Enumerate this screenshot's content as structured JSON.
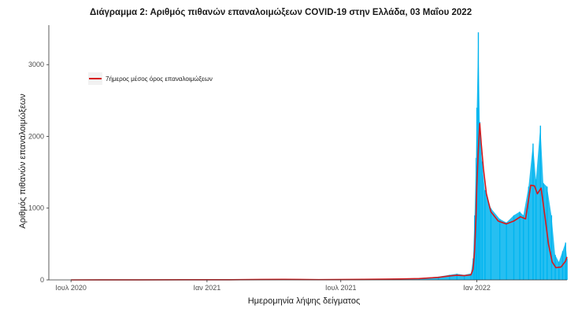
{
  "chart_data": {
    "type": "bar",
    "title": "Διάγραμμα 2: Αριθμός πιθανών επαναλοιμώξεων COVID-19 στην Ελλάδα, 03 Μαΐου 2022",
    "xlabel": "Ημερομηνία λήψης δείγματος",
    "ylabel": "Αριθμός πιθανών επαναλοιμώξεων",
    "x_range": [
      "2020-06-01",
      "2022-05-03"
    ],
    "ylim": [
      0,
      3550
    ],
    "x_ticks": [
      {
        "date": "2020-07-01",
        "label": "Ιουλ 2020"
      },
      {
        "date": "2021-01-01",
        "label": "Ιαν 2021"
      },
      {
        "date": "2021-07-01",
        "label": "Ιουλ 2021"
      },
      {
        "date": "2022-01-01",
        "label": "Ιαν 2022"
      }
    ],
    "y_ticks": [
      0,
      1000,
      2000,
      3000
    ],
    "grid": false,
    "legend": {
      "position": "top-left",
      "entries": [
        {
          "label": "7ήμερος μέσος όρος επαναλοιμώξεων",
          "color": "#d7191c"
        }
      ]
    },
    "colors": {
      "bars": "#00b4ef",
      "line": "#d7191c",
      "axis": "#333333"
    },
    "daily_series": {
      "name": "daily",
      "points": [
        [
          "2020-07-01",
          0
        ],
        [
          "2020-10-01",
          1
        ],
        [
          "2020-12-01",
          3
        ],
        [
          "2021-02-01",
          2
        ],
        [
          "2021-03-15",
          8
        ],
        [
          "2021-04-15",
          10
        ],
        [
          "2021-06-01",
          4
        ],
        [
          "2021-08-01",
          12
        ],
        [
          "2021-09-10",
          18
        ],
        [
          "2021-10-15",
          25
        ],
        [
          "2021-11-10",
          45
        ],
        [
          "2021-11-25",
          70
        ],
        [
          "2021-12-05",
          85
        ],
        [
          "2021-12-15",
          70
        ],
        [
          "2021-12-24",
          90
        ],
        [
          "2021-12-27",
          300
        ],
        [
          "2021-12-29",
          900
        ],
        [
          "2021-12-31",
          1700
        ],
        [
          "2022-01-01",
          2400
        ],
        [
          "2022-01-03",
          3450
        ],
        [
          "2022-01-05",
          2200
        ],
        [
          "2022-01-08",
          1650
        ],
        [
          "2022-01-12",
          1250
        ],
        [
          "2022-01-20",
          1000
        ],
        [
          "2022-02-01",
          850
        ],
        [
          "2022-02-10",
          800
        ],
        [
          "2022-02-20",
          900
        ],
        [
          "2022-02-28",
          950
        ],
        [
          "2022-03-05",
          900
        ],
        [
          "2022-03-12",
          1300
        ],
        [
          "2022-03-18",
          1900
        ],
        [
          "2022-03-22",
          1400
        ],
        [
          "2022-03-28",
          2150
        ],
        [
          "2022-04-01",
          1350
        ],
        [
          "2022-04-06",
          1300
        ],
        [
          "2022-04-12",
          900
        ],
        [
          "2022-04-17",
          350
        ],
        [
          "2022-04-22",
          250
        ],
        [
          "2022-04-27",
          400
        ],
        [
          "2022-05-01",
          520
        ],
        [
          "2022-05-03",
          300
        ]
      ]
    },
    "moving_average_series": {
      "name": "7ήμερος μέσος όρος επαναλοιμώξεων",
      "points": [
        [
          "2020-07-01",
          0
        ],
        [
          "2020-10-01",
          1
        ],
        [
          "2020-12-01",
          2
        ],
        [
          "2021-02-01",
          2
        ],
        [
          "2021-03-15",
          6
        ],
        [
          "2021-04-15",
          8
        ],
        [
          "2021-06-01",
          4
        ],
        [
          "2021-08-01",
          8
        ],
        [
          "2021-09-10",
          12
        ],
        [
          "2021-10-15",
          18
        ],
        [
          "2021-11-10",
          35
        ],
        [
          "2021-11-25",
          55
        ],
        [
          "2021-12-05",
          65
        ],
        [
          "2021-12-15",
          60
        ],
        [
          "2021-12-24",
          70
        ],
        [
          "2021-12-27",
          150
        ],
        [
          "2021-12-29",
          400
        ],
        [
          "2021-12-31",
          900
        ],
        [
          "2022-01-01",
          1300
        ],
        [
          "2022-01-03",
          1800
        ],
        [
          "2022-01-05",
          2180
        ],
        [
          "2022-01-07",
          1900
        ],
        [
          "2022-01-10",
          1550
        ],
        [
          "2022-01-14",
          1200
        ],
        [
          "2022-01-20",
          950
        ],
        [
          "2022-01-30",
          820
        ],
        [
          "2022-02-10",
          780
        ],
        [
          "2022-02-20",
          820
        ],
        [
          "2022-03-01",
          880
        ],
        [
          "2022-03-08",
          850
        ],
        [
          "2022-03-15",
          1320
        ],
        [
          "2022-03-20",
          1310
        ],
        [
          "2022-03-24",
          1200
        ],
        [
          "2022-03-29",
          1280
        ],
        [
          "2022-04-03",
          900
        ],
        [
          "2022-04-08",
          500
        ],
        [
          "2022-04-13",
          250
        ],
        [
          "2022-04-18",
          170
        ],
        [
          "2022-04-25",
          180
        ],
        [
          "2022-05-01",
          260
        ],
        [
          "2022-05-03",
          320
        ]
      ]
    }
  }
}
